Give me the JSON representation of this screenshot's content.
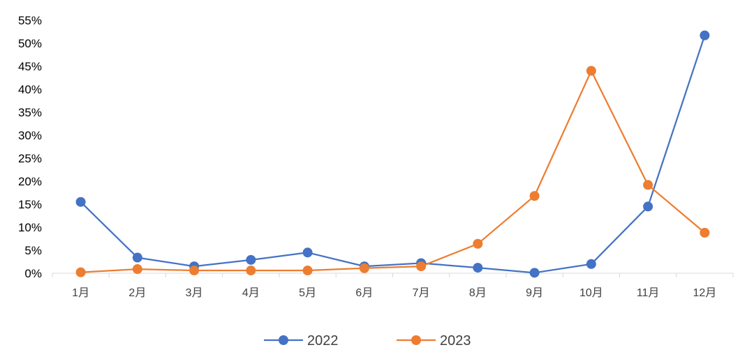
{
  "chart_data": {
    "type": "line",
    "title": "",
    "xlabel": "",
    "ylabel": "",
    "categories": [
      "1月",
      "2月",
      "3月",
      "4月",
      "5月",
      "6月",
      "7月",
      "8月",
      "9月",
      "10月",
      "11月",
      "12月"
    ],
    "y_ticks": [
      "0%",
      "5%",
      "10%",
      "15%",
      "20%",
      "25%",
      "30%",
      "35%",
      "40%",
      "45%",
      "50%",
      "55%"
    ],
    "ylim": [
      0,
      55
    ],
    "grid": false,
    "legend_position": "bottom",
    "series": [
      {
        "name": "2022",
        "color": "#4472C4",
        "values": [
          15.5,
          3.4,
          1.5,
          2.9,
          4.5,
          1.5,
          2.2,
          1.2,
          0.1,
          2.0,
          14.5,
          51.7
        ]
      },
      {
        "name": "2023",
        "color": "#ED7D31",
        "values": [
          0.2,
          0.9,
          0.6,
          0.6,
          0.6,
          1.1,
          1.5,
          6.4,
          16.8,
          44.0,
          19.2,
          8.8
        ]
      }
    ]
  }
}
